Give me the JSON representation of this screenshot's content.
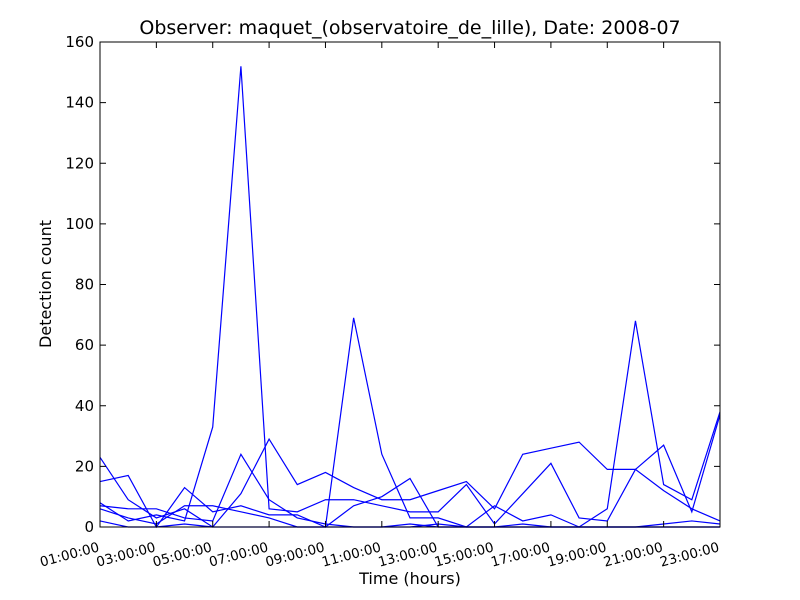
{
  "chart_data": {
    "type": "line",
    "title": "Observer: maquet_(observatoire_de_lille), Date: 2008-07",
    "xlabel": "Time (hours)",
    "ylabel": "Detection count",
    "x": [
      "01:00:00",
      "02:00:00",
      "03:00:00",
      "04:00:00",
      "05:00:00",
      "06:00:00",
      "07:00:00",
      "08:00:00",
      "09:00:00",
      "10:00:00",
      "11:00:00",
      "12:00:00",
      "13:00:00",
      "14:00:00",
      "15:00:00",
      "16:00:00",
      "17:00:00",
      "18:00:00",
      "19:00:00",
      "20:00:00",
      "21:00:00",
      "22:00:00",
      "23:00:00"
    ],
    "xticks": [
      "01:00:00",
      "03:00:00",
      "05:00:00",
      "07:00:00",
      "09:00:00",
      "11:00:00",
      "13:00:00",
      "15:00:00",
      "17:00:00",
      "19:00:00",
      "21:00:00",
      "23:00:00"
    ],
    "yticks": [
      "0",
      "20",
      "40",
      "60",
      "80",
      "100",
      "120",
      "140",
      "160"
    ],
    "ylim": [
      0,
      160
    ],
    "grid": false,
    "line_color": "#0000ff",
    "series": [
      {
        "values": [
          23,
          9,
          3,
          6,
          0,
          11,
          29,
          14,
          18,
          13,
          9,
          9,
          12,
          15,
          6,
          24,
          26,
          28,
          19,
          19,
          27,
          5,
          37
        ]
      },
      {
        "values": [
          15,
          17,
          0,
          13,
          5,
          7,
          4,
          4,
          0,
          69,
          24,
          3,
          3,
          0,
          7,
          2,
          4,
          0,
          6,
          68,
          14,
          9,
          38
        ]
      },
      {
        "values": [
          7,
          6,
          6,
          3,
          2,
          24,
          9,
          3,
          1,
          0,
          0,
          1,
          0,
          0,
          0,
          0,
          0,
          0,
          0,
          0,
          1,
          2,
          1
        ]
      },
      {
        "values": [
          8,
          2,
          4,
          2,
          33,
          152,
          6,
          5,
          9,
          9,
          7,
          5,
          5,
          14,
          1,
          11,
          21,
          3,
          2,
          19,
          12,
          6,
          2
        ]
      },
      {
        "values": [
          6,
          3,
          1,
          7,
          7,
          5,
          3,
          0,
          0,
          7,
          10,
          16,
          0,
          0,
          0,
          1,
          0,
          0,
          0,
          0,
          0,
          0,
          0
        ]
      },
      {
        "values": [
          2,
          0,
          0,
          1,
          0,
          0,
          0,
          0,
          0,
          0,
          0,
          0,
          1,
          0,
          0,
          0,
          0,
          0,
          0,
          0,
          0,
          0,
          0
        ]
      }
    ]
  }
}
